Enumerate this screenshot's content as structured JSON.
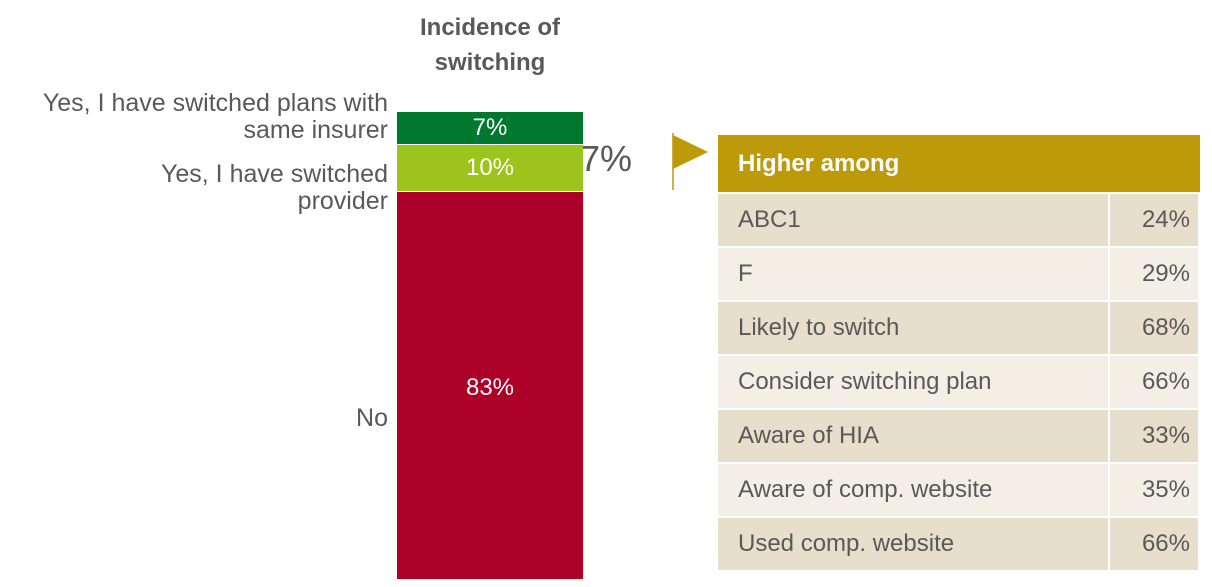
{
  "chart_data": {
    "type": "stacked-bar",
    "title": "Incidence of switching",
    "series": [
      {
        "name": "Yes, I have switched plans with same insurer",
        "color": "#00782f",
        "values": [
          7
        ],
        "value_labels": [
          "7%"
        ]
      },
      {
        "name": "Yes, I have switched provider",
        "color": "#9cc41c",
        "values": [
          10
        ],
        "value_labels": [
          "10%"
        ]
      },
      {
        "name": "No",
        "color": "#ad0029",
        "values": [
          83
        ],
        "value_labels": [
          "83%"
        ]
      }
    ],
    "ylim": [
      0,
      100
    ],
    "annotation": "17%"
  },
  "table": {
    "header": "Higher among",
    "header_color": "#bd9a0a",
    "rows": [
      [
        "ABC1",
        "24%"
      ],
      [
        "F",
        "29%"
      ],
      [
        "Likely to switch",
        "68%"
      ],
      [
        "Consider switching plan",
        "66%"
      ],
      [
        "Aware of HIA",
        "33%"
      ],
      [
        "Aware of comp. website",
        "35%"
      ],
      [
        "Used comp. website",
        "66%"
      ]
    ]
  }
}
